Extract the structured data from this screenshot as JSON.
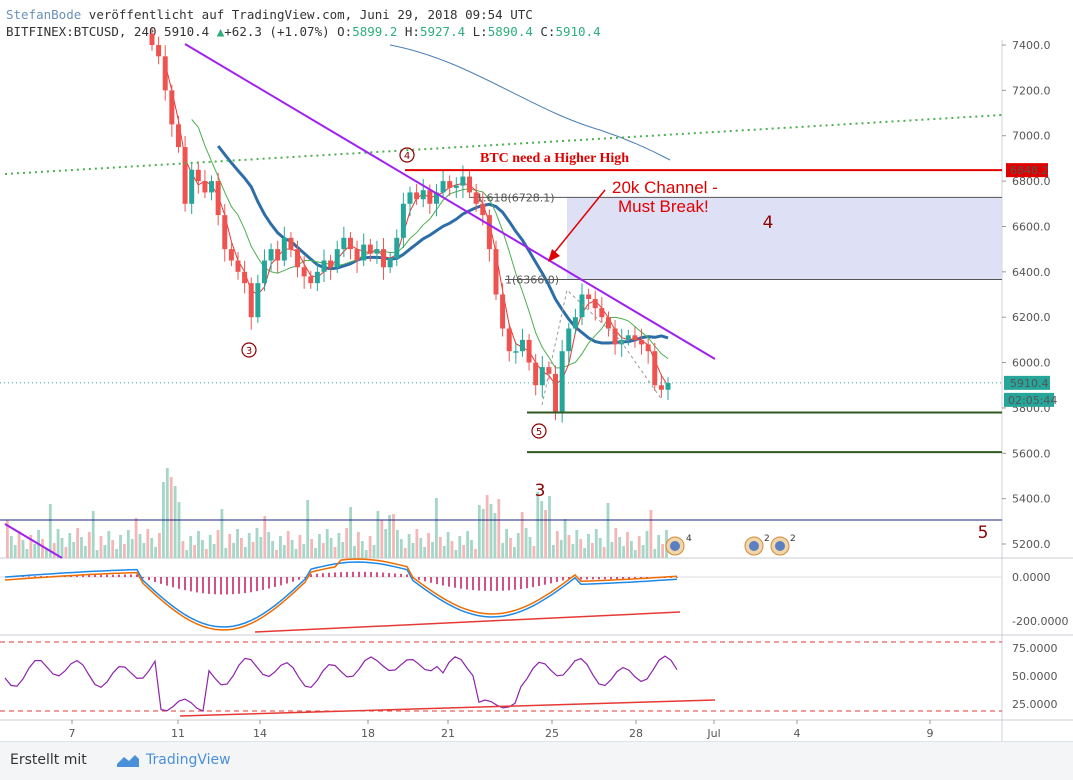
{
  "header": {
    "author": "StefanBode",
    "published": "veröffentlicht auf TradingView.com, Juni 29, 2018 09:54 UTC",
    "symbol_line": "BITFINEX:BTCUSD, 240 5910.4",
    "change_arrow": "▲",
    "change": "+62.3 (+1.07%)",
    "o_label": "O:",
    "o_value": "5899.2",
    "h_label": "H:",
    "h_value": "5927.4",
    "l_label": "L:",
    "l_value": "5890.4",
    "c_label": "C:",
    "c_value": "5910.4"
  },
  "footer": {
    "created_with": "Erstellt mit",
    "brand": "TradingView"
  },
  "colors": {
    "up": "#26a69a",
    "down": "#ef5350",
    "ema_blue": "#2e6ea8",
    "trend_purple": "#a020f0",
    "resistance_red": "#e00000",
    "support_green": "#2f5a1f",
    "channel_fill": "#d8daf5"
  },
  "chart_data": {
    "type": "candlestick",
    "symbol": "BITFINEX:BTCUSD",
    "interval": "240",
    "price_axis": {
      "ticks": [
        "7400.0",
        "7200.0",
        "7000.0",
        "6800.0",
        "6600.0",
        "6400.0",
        "6200.0",
        "6000.0",
        "5800.0",
        "5600.0",
        "5400.0",
        "5200.0"
      ],
      "ylim": [
        5130,
        7430
      ]
    },
    "time_axis": {
      "ticks": [
        "7",
        "11",
        "14",
        "18",
        "21",
        "25",
        "28",
        "Jul",
        "4",
        "9"
      ]
    },
    "current_price_label": "5910.4",
    "countdown_label": "02:05:44",
    "resistance_label": "6848.2",
    "annotations": {
      "headline": "BTC need a Higher High",
      "channel_note_line1": "20k Channel -",
      "channel_note_line2": "Must Break!",
      "fib_1618": "1.618(6728.1)",
      "fib_1": "1(6366.0)",
      "wave_3_top": "3",
      "wave_4_top": "4",
      "wave_5_top": "5",
      "box_4": "4",
      "label_3": "3",
      "label_5": "5",
      "event_badge_1": "4",
      "event_badge_2": "2",
      "event_badge_3": "2"
    },
    "levels": {
      "resistance": 6848.2,
      "fib_1618": 6728.1,
      "fib_1": 6366.0,
      "support_1": 5780,
      "support_2": 5605,
      "current": 5910.4
    },
    "close_series": [
      7400,
      7350,
      7200,
      7050,
      6950,
      6700,
      6850,
      6800,
      6750,
      6800,
      6650,
      6500,
      6450,
      6400,
      6350,
      6200,
      6350,
      6450,
      6500,
      6450,
      6550,
      6500,
      6420,
      6380,
      6350,
      6400,
      6450,
      6420,
      6500,
      6550,
      6500,
      6450,
      6520,
      6480,
      6500,
      6420,
      6460,
      6550,
      6700,
      6750,
      6720,
      6760,
      6700,
      6750,
      6800,
      6770,
      6780,
      6820,
      6750,
      6700,
      6650,
      6500,
      6300,
      6150,
      6050,
      6050,
      6100,
      6000,
      5900,
      5980,
      5950,
      5780,
      6050,
      6150,
      6200,
      6300,
      6280,
      6240,
      6200,
      6150,
      6080,
      6100,
      6120,
      6100,
      6080,
      6050,
      5900,
      5880,
      5910
    ],
    "macd_axis": {
      "ticks": [
        "0.0000",
        "-200.0000"
      ]
    },
    "rsi_axis": {
      "ticks": [
        "75.0000",
        "50.0000",
        "25.0000"
      ]
    }
  }
}
